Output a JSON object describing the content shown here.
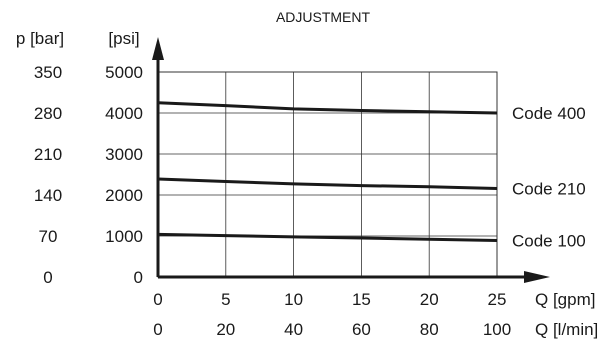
{
  "chart_data": {
    "type": "line",
    "title": "ADJUSTMENT",
    "y_axis_bar": {
      "label": "p [bar]",
      "ticks": [
        "350",
        "280",
        "210",
        "140",
        "70",
        "0"
      ]
    },
    "y_axis_psi": {
      "label": "[psi]",
      "ticks": [
        "5000",
        "4000",
        "3000",
        "2000",
        "1000",
        "0"
      ],
      "range": [
        0,
        5000
      ]
    },
    "x_axis_gpm": {
      "label": "Q [gpm]",
      "ticks": [
        "0",
        "5",
        "10",
        "15",
        "20",
        "25"
      ],
      "range": [
        0,
        25
      ]
    },
    "x_axis_lmin": {
      "label": "Q [l/min]",
      "ticks": [
        "0",
        "20",
        "40",
        "60",
        "80",
        "100"
      ]
    },
    "grid": true,
    "x": [
      0,
      5,
      10,
      15,
      20,
      25
    ],
    "series": [
      {
        "name": "Code 400",
        "values": [
          4250,
          4180,
          4100,
          4060,
          4030,
          4000
        ]
      },
      {
        "name": "Code 210",
        "values": [
          2390,
          2330,
          2270,
          2230,
          2200,
          2160
        ]
      },
      {
        "name": "Code 100",
        "values": [
          1040,
          1010,
          980,
          950,
          920,
          890
        ]
      }
    ]
  }
}
